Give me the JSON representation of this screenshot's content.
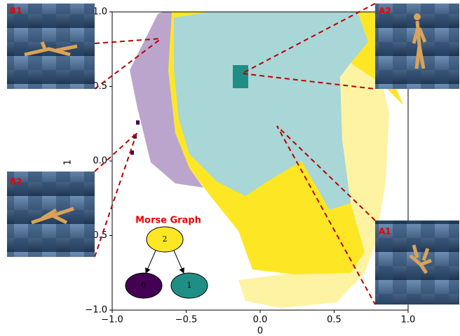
{
  "chart_data": {
    "type": "region",
    "x_label": "0",
    "y_label": "1",
    "xlim": [
      -1.0,
      1.0
    ],
    "ylim": [
      -1.0,
      1.0
    ],
    "xticks": [
      {
        "value": -1.0,
        "label": "−1.0"
      },
      {
        "value": -0.5,
        "label": "−0.5"
      },
      {
        "value": 0.0,
        "label": "0.0"
      },
      {
        "value": 0.5,
        "label": "0.5"
      },
      {
        "value": 1.0,
        "label": "1.0"
      }
    ],
    "yticks": [
      {
        "value": -1.0,
        "label": "−1.0"
      },
      {
        "value": -0.5,
        "label": "−0.5"
      },
      {
        "value": 0.0,
        "label": "0.0"
      },
      {
        "value": 0.5,
        "label": "0.5"
      },
      {
        "value": 1.0,
        "label": "1.0"
      }
    ],
    "panels": [
      "B1",
      "A2",
      "B2",
      "A1"
    ],
    "morse_graph": {
      "title": "Morse Graph",
      "nodes": [
        "2",
        "0",
        "1"
      ]
    }
  }
}
